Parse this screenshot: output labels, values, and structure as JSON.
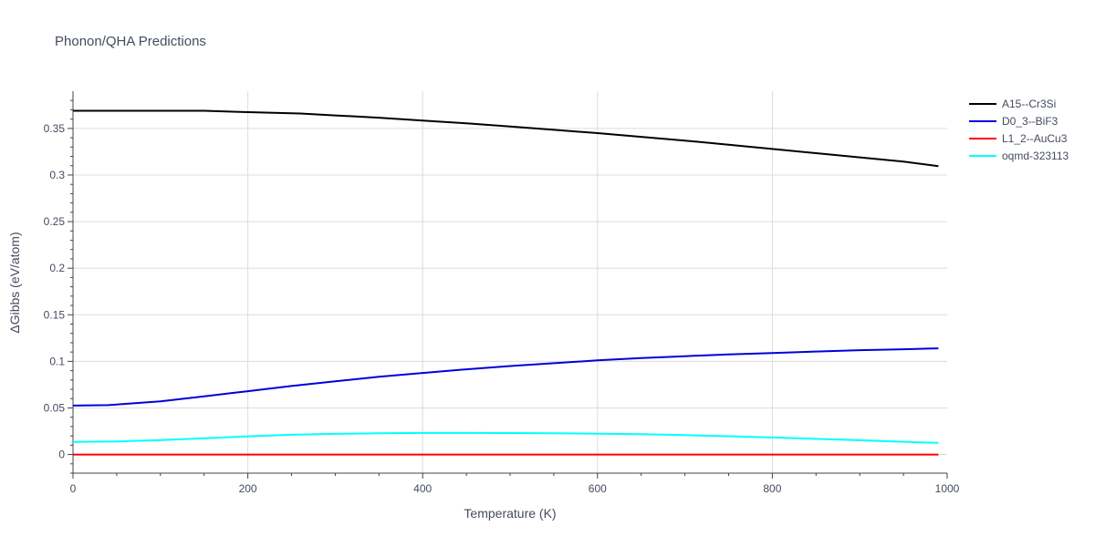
{
  "chart_data": {
    "type": "line",
    "title": "Phonon/QHA Predictions",
    "xlabel": "Temperature (K)",
    "ylabel": "ΔGibbs (eV/atom)",
    "xlim": [
      0,
      1000
    ],
    "ylim": [
      -0.02,
      0.39
    ],
    "x_ticks": [
      0,
      200,
      400,
      600,
      800,
      1000
    ],
    "x_tick_labels": [
      "0",
      "200",
      "400",
      "600",
      "800",
      "1000"
    ],
    "y_ticks": [
      0,
      0.05,
      0.1,
      0.15,
      0.2,
      0.25,
      0.3,
      0.35
    ],
    "y_tick_labels": [
      "0",
      "0.05",
      "0.1",
      "0.15",
      "0.2",
      "0.25",
      "0.3",
      "0.35"
    ],
    "grid": true,
    "legend_position": "top-right",
    "series": [
      {
        "name": "A15--Cr3Si",
        "color": "#000000",
        "x": [
          0,
          50,
          100,
          150,
          200,
          260,
          300,
          350,
          400,
          450,
          500,
          550,
          600,
          650,
          700,
          750,
          800,
          850,
          900,
          950,
          990
        ],
        "y": [
          0.369,
          0.369,
          0.369,
          0.369,
          0.3675,
          0.366,
          0.364,
          0.3615,
          0.3585,
          0.3555,
          0.352,
          0.3485,
          0.345,
          0.341,
          0.337,
          0.3325,
          0.328,
          0.3235,
          0.319,
          0.3145,
          0.3095
        ]
      },
      {
        "name": "D0_3--BiF3",
        "color": "#0000dd",
        "x": [
          0,
          40,
          100,
          150,
          200,
          250,
          300,
          350,
          400,
          450,
          500,
          550,
          600,
          650,
          700,
          750,
          800,
          850,
          900,
          950,
          990
        ],
        "y": [
          0.0525,
          0.053,
          0.057,
          0.0625,
          0.068,
          0.0735,
          0.0785,
          0.0835,
          0.0875,
          0.0915,
          0.095,
          0.098,
          0.101,
          0.1035,
          0.1055,
          0.1075,
          0.109,
          0.1105,
          0.112,
          0.113,
          0.114
        ]
      },
      {
        "name": "L1_2--AuCu3",
        "color": "#ff0000",
        "x": [
          0,
          990
        ],
        "y": [
          0,
          0
        ]
      },
      {
        "name": "oqmd-323113",
        "color": "#00ffff",
        "x": [
          0,
          50,
          100,
          150,
          200,
          250,
          300,
          350,
          400,
          450,
          500,
          550,
          600,
          650,
          700,
          750,
          800,
          850,
          900,
          950,
          990
        ],
        "y": [
          0.0135,
          0.014,
          0.0155,
          0.0175,
          0.0195,
          0.0212,
          0.0222,
          0.0228,
          0.0232,
          0.0232,
          0.0231,
          0.0228,
          0.0224,
          0.0218,
          0.0208,
          0.0196,
          0.0183,
          0.0168,
          0.0153,
          0.0137,
          0.0125
        ]
      }
    ]
  }
}
